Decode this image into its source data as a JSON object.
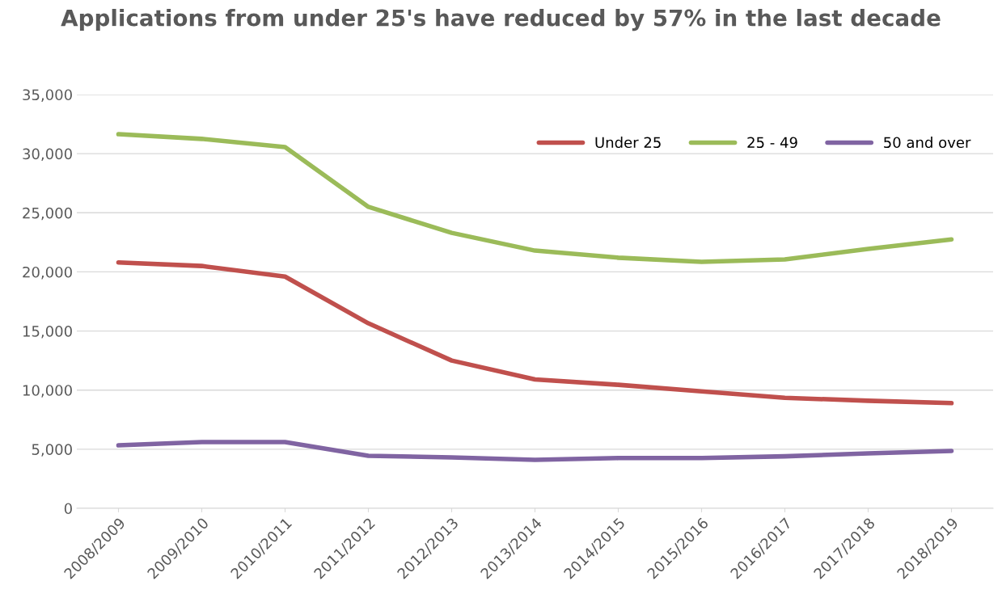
{
  "chart_data": {
    "type": "line",
    "title": "Applications from under 25's have reduced by 57% in the last decade",
    "categories": [
      "2008/2009",
      "2009/2010",
      "2010/2011",
      "2011/2012",
      "2012/2013",
      "2013/2014",
      "2014/2015",
      "2015/2016",
      "2016/2017",
      "2017/2018",
      "2018/2019"
    ],
    "series": [
      {
        "name": "Under 25",
        "color": "#c0504d",
        "values": [
          20800,
          20500,
          19600,
          15650,
          12500,
          10900,
          10450,
          9900,
          9350,
          9100,
          8900
        ]
      },
      {
        "name": "25 - 49",
        "color": "#9bbb59",
        "values": [
          31650,
          31250,
          30550,
          25500,
          23300,
          21800,
          21200,
          20850,
          21050,
          21950,
          22750
        ]
      },
      {
        "name": "50 and over",
        "color": "#8064a2",
        "values": [
          5330,
          5600,
          5600,
          4450,
          4300,
          4100,
          4250,
          4250,
          4400,
          4650,
          4850
        ]
      }
    ],
    "ylim": [
      0,
      35000
    ],
    "yticks": [
      0,
      {
        "value": 5000,
        "label": "5,000"
      },
      {
        "value": 10000,
        "label": "10,000"
      },
      {
        "value": 15000,
        "label": "15,000"
      },
      {
        "value": 20000,
        "label": "20,000"
      },
      {
        "value": 25000,
        "label": "25,000"
      },
      {
        "value": 30000,
        "label": "30,000"
      },
      {
        "value": 35000,
        "label": "35,000"
      }
    ],
    "grid": "y",
    "legend": "top right",
    "marker": "none",
    "line_style": "solid"
  }
}
